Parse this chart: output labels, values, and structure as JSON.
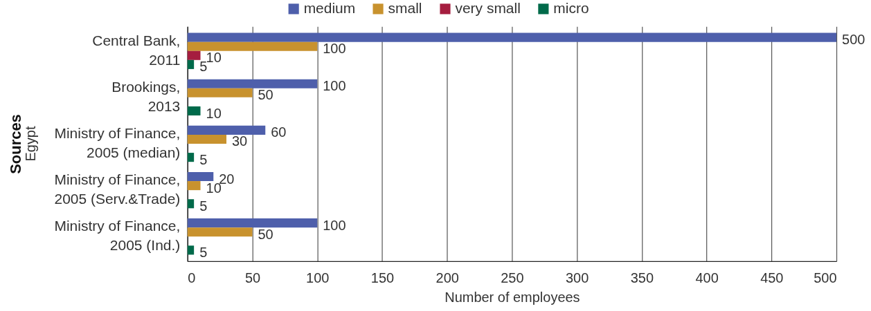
{
  "chart_data": {
    "type": "bar",
    "orientation": "horizontal",
    "categories": [
      "Central Bank,\n2011",
      "Brookings,\n2013",
      "Ministry of Finance,\n2005 (median)",
      "Ministry of Finance,\n2005 (Serv.&Trade)",
      "Ministry of Finance,\n2005 (Ind.)"
    ],
    "series": [
      {
        "name": "medium",
        "color": "#4e5fab",
        "values": [
          500,
          100,
          60,
          20,
          100
        ]
      },
      {
        "name": "small",
        "color": "#c8922e",
        "values": [
          100,
          50,
          30,
          10,
          50
        ]
      },
      {
        "name": "very small",
        "color": "#a51d3f",
        "values": [
          10,
          null,
          null,
          null,
          null
        ]
      },
      {
        "name": "micro",
        "color": "#006a4a",
        "values": [
          5,
          10,
          5,
          5,
          5
        ]
      }
    ],
    "xlabel": "Number of employees",
    "ylabel": "Sources",
    "annotations": [
      "Egypt"
    ],
    "xlim": [
      0,
      500
    ],
    "xticks": [
      0,
      50,
      100,
      150,
      200,
      250,
      300,
      350,
      400,
      450,
      500
    ],
    "grid": "x",
    "legend": "top",
    "data_labels": true
  }
}
